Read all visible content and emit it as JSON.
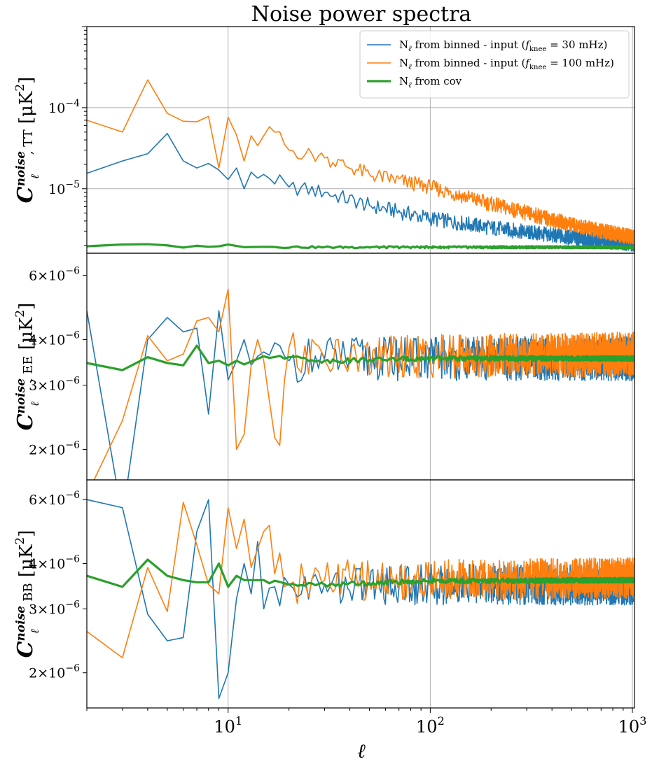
{
  "chart_data": {
    "type": "line",
    "title": "Noise power spectra",
    "xlabel": "ℓ",
    "xscale": "log",
    "xlim": [
      2,
      1024
    ],
    "x_ticks": [
      {
        "value": 10,
        "base": "10",
        "exp": "1"
      },
      {
        "value": 100,
        "base": "10",
        "exp": "2"
      },
      {
        "value": 1000,
        "base": "10",
        "exp": "3"
      }
    ],
    "legend": {
      "placement": "top-right",
      "entries": [
        {
          "pre": "N",
          "sub": "ℓ",
          "mid": " from binned - input (",
          "f": "f",
          "fsub": "knee",
          "post": " = 30 mHz)",
          "color": "#1f77b4"
        },
        {
          "pre": "N",
          "sub": "ℓ",
          "mid": " from binned - input (",
          "f": "f",
          "fsub": "knee",
          "post": " = 100 mHz)",
          "color": "#ff7f0e"
        },
        {
          "pre": "N",
          "sub": "ℓ",
          "mid": " from cov",
          "f": "",
          "fsub": "",
          "post": "",
          "color": "#2ca02c"
        }
      ]
    },
    "colors": {
      "blue": "#1f77b4",
      "orange": "#ff7f0e",
      "green": "#2ca02c"
    },
    "panels": [
      {
        "id": "TT",
        "ylabel_C": "C",
        "ylabel_sup": "noise",
        "ylabel_sub": "ℓ",
        "ylabel_spec": ", TT",
        "ylabel_unit": "[μK",
        "ylabel_unit_exp": "2",
        "ylabel_close": "]",
        "yscale": "log",
        "ylim": [
          1.6e-06,
          0.001
        ],
        "y_ticks": [
          {
            "value": 0.0001,
            "base": "10",
            "exp": "−4"
          },
          {
            "value": 1e-05,
            "base": "10",
            "exp": "−5"
          }
        ],
        "series": [
          {
            "name": "N_ℓ from binned - input (f_knee = 30 mHz)",
            "color": "#1f77b4",
            "anchors": [
              [
                2,
                1.55e-05
              ],
              [
                3,
                2.2e-05
              ],
              [
                4,
                2.7e-05
              ],
              [
                5,
                4.8e-05
              ],
              [
                6,
                2.2e-05
              ],
              [
                7,
                1.8e-05
              ],
              [
                8,
                2.05e-05
              ],
              [
                9,
                1.7e-05
              ],
              [
                10,
                1.3e-05
              ],
              [
                11,
                1.8e-05
              ],
              [
                12,
                1e-05
              ],
              [
                13,
                1.6e-05
              ],
              [
                14,
                1.35e-05
              ],
              [
                15,
                1.5e-05
              ],
              [
                20,
                1.05e-05
              ],
              [
                30,
                9e-06
              ],
              [
                50,
                6.2e-06
              ],
              [
                100,
                4.3e-06
              ],
              [
                200,
                3.3e-06
              ],
              [
                300,
                2.9e-06
              ],
              [
                500,
                2.5e-06
              ],
              [
                700,
                2.3e-06
              ],
              [
                1024,
                2.1e-06
              ]
            ],
            "noise": 0.22
          },
          {
            "name": "N_ℓ from binned - input (f_knee = 100 mHz)",
            "color": "#ff7f0e",
            "anchors": [
              [
                2,
                7e-05
              ],
              [
                3,
                5e-05
              ],
              [
                4,
                0.00022
              ],
              [
                5,
                8.5e-05
              ],
              [
                6,
                6.8e-05
              ],
              [
                7,
                6.7e-05
              ],
              [
                8,
                7.8e-05
              ],
              [
                9,
                1.8e-05
              ],
              [
                10,
                7.6e-05
              ],
              [
                11,
                4.6e-05
              ],
              [
                12,
                2.2e-05
              ],
              [
                13,
                4.5e-05
              ],
              [
                14,
                3.4e-05
              ],
              [
                15,
                4.5e-05
              ],
              [
                17,
                5e-05
              ],
              [
                20,
                3e-05
              ],
              [
                30,
                2.4e-05
              ],
              [
                50,
                1.5e-05
              ],
              [
                100,
                1.05e-05
              ],
              [
                200,
                6.5e-06
              ],
              [
                300,
                5e-06
              ],
              [
                500,
                3.6e-06
              ],
              [
                700,
                3e-06
              ],
              [
                1024,
                2.5e-06
              ]
            ],
            "noise": 0.22
          },
          {
            "name": "N_ℓ from cov",
            "color": "#2ca02c",
            "anchors": [
              [
                2,
                1.95e-06
              ],
              [
                3,
                2.05e-06
              ],
              [
                4,
                2.07e-06
              ],
              [
                5,
                2e-06
              ],
              [
                6,
                1.88e-06
              ],
              [
                7,
                1.98e-06
              ],
              [
                8,
                1.92e-06
              ],
              [
                9,
                1.95e-06
              ],
              [
                10,
                2.05e-06
              ],
              [
                12,
                1.9e-06
              ],
              [
                15,
                1.92e-06
              ],
              [
                30,
                1.9e-06
              ],
              [
                100,
                1.9e-06
              ],
              [
                1024,
                1.9e-06
              ]
            ],
            "noise": 0.03
          }
        ]
      },
      {
        "id": "EE",
        "ylabel_C": "C",
        "ylabel_sup": "noise",
        "ylabel_sub": "ℓ",
        "ylabel_spec": ", EE",
        "ylabel_unit": "[μK",
        "ylabel_unit_exp": "2",
        "ylabel_close": "]",
        "yscale": "log",
        "ylim": [
          1.65e-06,
          6.9e-06
        ],
        "y_ticks": [
          {
            "value": 6e-06,
            "base": "6×10",
            "exp": "−6"
          },
          {
            "value": 4e-06,
            "base": "4×10",
            "exp": "−6"
          },
          {
            "value": 3e-06,
            "base": "3×10",
            "exp": "−6"
          },
          {
            "value": 2e-06,
            "base": "2×10",
            "exp": "−6"
          }
        ],
        "series": [
          {
            "name": "N_ℓ from binned - input (f_knee = 30 mHz)",
            "color": "#1f77b4",
            "anchors": [
              [
                2,
                4.8e-06
              ],
              [
                3,
                1.3e-06
              ],
              [
                4,
                4e-06
              ],
              [
                5,
                4.6e-06
              ],
              [
                6,
                4.2e-06
              ],
              [
                7,
                4.3e-06
              ],
              [
                8,
                2.5e-06
              ],
              [
                9,
                4.8e-06
              ],
              [
                10,
                3.1e-06
              ],
              [
                11,
                3.5e-06
              ],
              [
                12,
                4e-06
              ],
              [
                13,
                3.4e-06
              ],
              [
                14,
                3.6e-06
              ],
              [
                15,
                3.7e-06
              ],
              [
                20,
                3.5e-06
              ],
              [
                30,
                3.55e-06
              ],
              [
                100,
                3.55e-06
              ],
              [
                1024,
                3.55e-06
              ]
            ],
            "noise": 0.14
          },
          {
            "name": "N_ℓ from binned - input (f_knee = 100 mHz)",
            "color": "#ff7f0e",
            "anchors": [
              [
                2,
                1.5e-06
              ],
              [
                3,
                2.4e-06
              ],
              [
                4,
                4.1e-06
              ],
              [
                5,
                3.5e-06
              ],
              [
                6,
                3.65e-06
              ],
              [
                7,
                4.5e-06
              ],
              [
                8,
                4.6e-06
              ],
              [
                9,
                4.2e-06
              ],
              [
                10,
                5.5e-06
              ],
              [
                11,
                2e-06
              ],
              [
                12,
                2.2e-06
              ],
              [
                13,
                3.4e-06
              ],
              [
                14,
                4e-06
              ],
              [
                15,
                3.5e-06
              ],
              [
                18,
                2.05e-06
              ],
              [
                20,
                3.8e-06
              ],
              [
                30,
                3.5e-06
              ],
              [
                100,
                3.6e-06
              ],
              [
                1024,
                3.65e-06
              ]
            ],
            "noise": 0.14
          },
          {
            "name": "N_ℓ from cov",
            "color": "#2ca02c",
            "anchors": [
              [
                2,
                3.45e-06
              ],
              [
                3,
                3.3e-06
              ],
              [
                4,
                3.58e-06
              ],
              [
                5,
                3.45e-06
              ],
              [
                6,
                3.4e-06
              ],
              [
                7,
                3.85e-06
              ],
              [
                8,
                3.45e-06
              ],
              [
                9,
                3.5e-06
              ],
              [
                10,
                3.4e-06
              ],
              [
                11,
                3.5e-06
              ],
              [
                12,
                3.42e-06
              ],
              [
                15,
                3.6e-06
              ],
              [
                20,
                3.58e-06
              ],
              [
                30,
                3.5e-06
              ],
              [
                100,
                3.55e-06
              ],
              [
                1024,
                3.55e-06
              ]
            ],
            "noise": 0.015
          }
        ]
      },
      {
        "id": "BB",
        "ylabel_C": "C",
        "ylabel_sup": "noise",
        "ylabel_sub": "ℓ",
        "ylabel_spec": ", BB",
        "ylabel_unit": "[μK",
        "ylabel_unit_exp": "2",
        "ylabel_close": "]",
        "yscale": "log",
        "ylim": [
          1.6e-06,
          6.8e-06
        ],
        "y_ticks": [
          {
            "value": 6e-06,
            "base": "6×10",
            "exp": "−6"
          },
          {
            "value": 4e-06,
            "base": "4×10",
            "exp": "−6"
          },
          {
            "value": 3e-06,
            "base": "3×10",
            "exp": "−6"
          },
          {
            "value": 2e-06,
            "base": "2×10",
            "exp": "−6"
          }
        ],
        "series": [
          {
            "name": "N_ℓ from binned - input (f_knee = 30 mHz)",
            "color": "#1f77b4",
            "anchors": [
              [
                2,
                6e-06
              ],
              [
                3,
                5.7e-06
              ],
              [
                4,
                2.9e-06
              ],
              [
                5,
                2.45e-06
              ],
              [
                6,
                2.5e-06
              ],
              [
                7,
                4.9e-06
              ],
              [
                8,
                6e-06
              ],
              [
                9,
                1.7e-06
              ],
              [
                10,
                2e-06
              ],
              [
                11,
                3.2e-06
              ],
              [
                12,
                4e-06
              ],
              [
                13,
                3.3e-06
              ],
              [
                14,
                4.6e-06
              ],
              [
                15,
                3e-06
              ],
              [
                20,
                3.5e-06
              ],
              [
                30,
                3.5e-06
              ],
              [
                100,
                3.5e-06
              ],
              [
                1024,
                3.5e-06
              ]
            ],
            "noise": 0.13
          },
          {
            "name": "N_ℓ from binned - input (f_knee = 100 mHz)",
            "color": "#ff7f0e",
            "anchors": [
              [
                2,
                2.6e-06
              ],
              [
                3,
                2.2e-06
              ],
              [
                4,
                3.9e-06
              ],
              [
                5,
                2.95e-06
              ],
              [
                6,
                5.9e-06
              ],
              [
                7,
                4.5e-06
              ],
              [
                8,
                3.5e-06
              ],
              [
                9,
                3.3e-06
              ],
              [
                10,
                5.7e-06
              ],
              [
                11,
                4.4e-06
              ],
              [
                12,
                5.3e-06
              ],
              [
                13,
                3.9e-06
              ],
              [
                15,
                4.9e-06
              ],
              [
                20,
                3.5e-06
              ],
              [
                30,
                3.6e-06
              ],
              [
                100,
                3.6e-06
              ],
              [
                1024,
                3.65e-06
              ]
            ],
            "noise": 0.13
          },
          {
            "name": "N_ℓ from cov",
            "color": "#2ca02c",
            "anchors": [
              [
                2,
                3.7e-06
              ],
              [
                3,
                3.45e-06
              ],
              [
                4,
                4.1e-06
              ],
              [
                5,
                3.7e-06
              ],
              [
                6,
                3.6e-06
              ],
              [
                7,
                3.55e-06
              ],
              [
                8,
                3.55e-06
              ],
              [
                9,
                4e-06
              ],
              [
                10,
                3.45e-06
              ],
              [
                11,
                3.7e-06
              ],
              [
                12,
                3.6e-06
              ],
              [
                15,
                3.6e-06
              ],
              [
                20,
                3.5e-06
              ],
              [
                30,
                3.5e-06
              ],
              [
                100,
                3.58e-06
              ],
              [
                1024,
                3.6e-06
              ]
            ],
            "noise": 0.015
          }
        ]
      }
    ]
  }
}
